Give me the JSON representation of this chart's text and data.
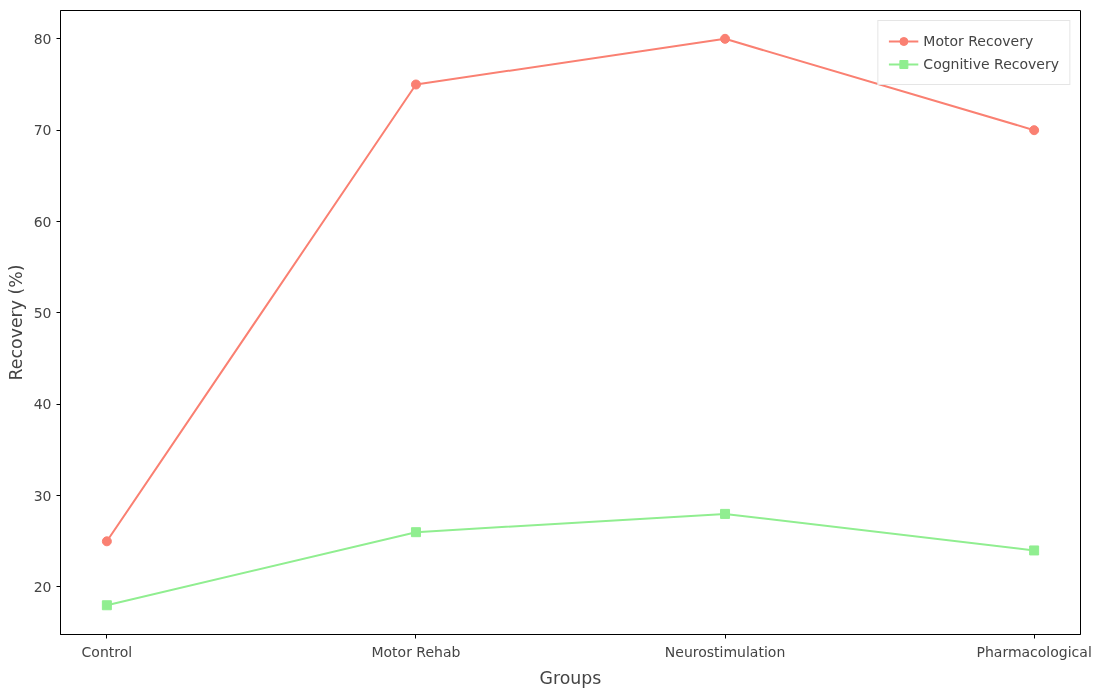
{
  "chart_data": {
    "type": "line",
    "xlabel": "Groups",
    "ylabel": "Recovery (%)",
    "categories": [
      "Control",
      "Motor Rehab",
      "Neurostimulation",
      "Pharmacological"
    ],
    "series": [
      {
        "name": "Motor Recovery",
        "color": "#fa8072",
        "values": [
          25,
          75,
          80,
          70
        ],
        "marker": "circle"
      },
      {
        "name": "Cognitive Recovery",
        "color": "#90ee90",
        "values": [
          18,
          26,
          28,
          24
        ],
        "marker": "square"
      }
    ],
    "ylim": [
      14.8,
      83.1
    ],
    "yticks": [
      20,
      30,
      40,
      50,
      60,
      70,
      80
    ],
    "grid": false,
    "legend": "top right",
    "line_style": "solid"
  }
}
